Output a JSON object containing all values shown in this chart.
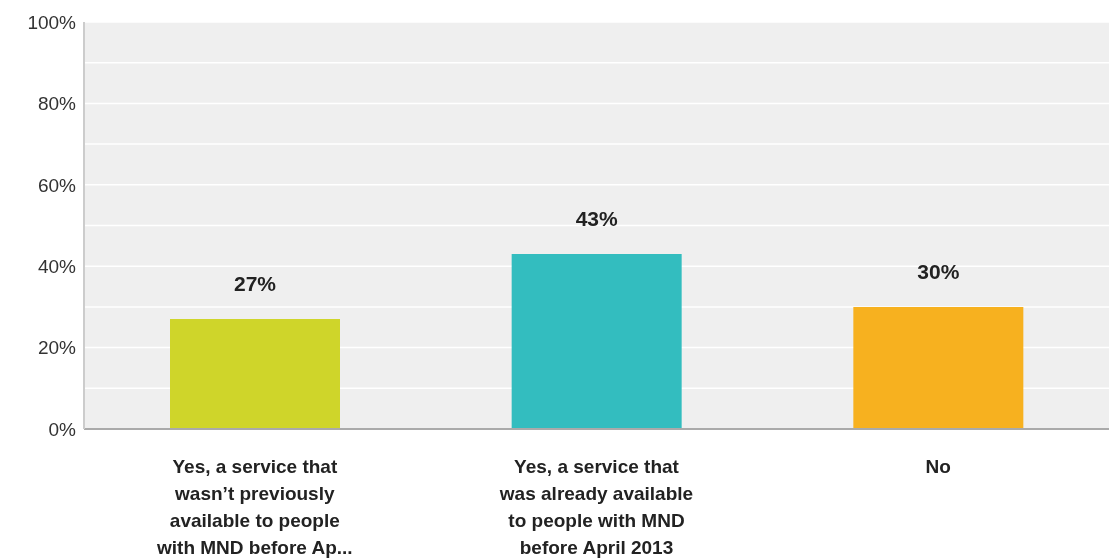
{
  "chart_data": {
    "type": "bar",
    "categories": [
      "Yes, a service that wasn’t previously available to people with MND before Ap...",
      "Yes, a service that was already available to people with MND before April 2013",
      "No"
    ],
    "values": [
      27,
      43,
      30
    ],
    "colors": [
      "#cfd52a",
      "#33bdbf",
      "#f7b11f"
    ],
    "ylim": [
      0,
      100
    ],
    "yticks": [
      {
        "value": 0,
        "label": "0%"
      },
      {
        "value": 10,
        "label": null
      },
      {
        "value": 20,
        "label": "20%"
      },
      {
        "value": 30,
        "label": null
      },
      {
        "value": 40,
        "label": "40%"
      },
      {
        "value": 50,
        "label": null
      },
      {
        "value": 60,
        "label": "60%"
      },
      {
        "value": 70,
        "label": null
      },
      {
        "value": 80,
        "label": "80%"
      },
      {
        "value": 90,
        "label": null
      },
      {
        "value": 100,
        "label": "100%"
      }
    ],
    "value_labels": [
      "27%",
      "43%",
      "30%"
    ],
    "grid": "y"
  }
}
